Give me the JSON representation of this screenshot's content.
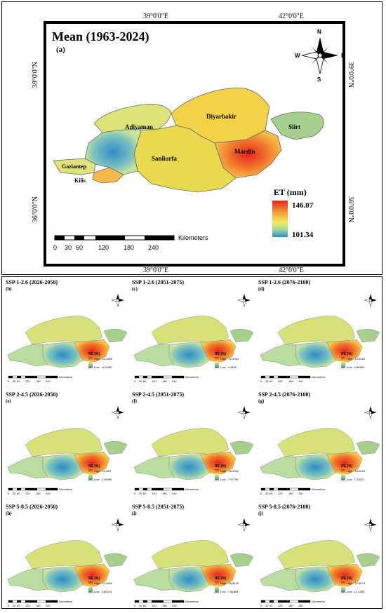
{
  "main": {
    "title": "Mean (1963-2024)",
    "subtitle": "(a)",
    "lon_labels": [
      "39°0'0\"E",
      "42°0'0\"E"
    ],
    "lat_labels": [
      "39°0'0\"N",
      "36°0'0\"N"
    ],
    "legend": {
      "title": "ET (mm)",
      "high": "146.07",
      "low": "101.34"
    },
    "scale": {
      "ticks": [
        "0",
        "30",
        "60",
        "120",
        "180",
        "240"
      ],
      "unit": "Kilometers"
    },
    "regions": [
      "Diyarbakir",
      "Siirt",
      "Adiyaman",
      "Mardin",
      "Sanliurfa",
      "Gaziantep",
      "Kilis"
    ],
    "compass": [
      "N",
      "S",
      "E",
      "W"
    ]
  },
  "panels": [
    {
      "title": "SSP 1-2.6 (2026-2050)",
      "label": "(b)",
      "legend_title": "RE (%)",
      "high": "High : 12.3169",
      "low": "Low : -6.51067"
    },
    {
      "title": "SSP 1-2.6 (2051-2075)",
      "label": "(c)",
      "legend_title": "RE (%)",
      "high": "High : 12.4912",
      "low": "Low : 4.4439"
    },
    {
      "title": "SSP 1-2.6 (2076-2100)",
      "label": "(d)",
      "legend_title": "RE (%)",
      "high": "High : 12.6320",
      "low": "Low : 4.86599"
    },
    {
      "title": "SSP 2-4.5 (2026-2050)",
      "label": "(e)",
      "legend_title": "RE (%)",
      "high": "High : 12.549",
      "low": "Low : 4.06999"
    },
    {
      "title": "SSP 2-4.5 (2051-2075)",
      "label": "(f)",
      "legend_title": "RE (%)",
      "high": "High : 16.2004",
      "low": "Low : 7.97799"
    },
    {
      "title": "SSP 2-4.5 (2076-2100)",
      "label": "(g)",
      "legend_title": "RE (%)",
      "high": "High : 16.5233",
      "low": "Low : 7.11027"
    },
    {
      "title": "SSP 5-8.5 (2026-2050)",
      "label": "(h)",
      "legend_title": "RE (%)",
      "high": "High : 12.5464",
      "low": "Low : 4.80424"
    },
    {
      "title": "SSP 5-8.5 (2051-2075)",
      "label": "(i)",
      "legend_title": "RE (%)",
      "high": "High : 16.8149",
      "low": "Low : 7.81863"
    },
    {
      "title": "SSP 5-8.5 (2076-2100)",
      "label": "(j)",
      "legend_title": "RE (%)",
      "high": "High : 22.5579",
      "low": "Low : 12.4255"
    }
  ],
  "panel_scale": {
    "ticks": [
      "0",
      "30",
      "60",
      "120",
      "180",
      "240"
    ],
    "unit": "Kilometers"
  },
  "colors": {
    "high": "#e8241c",
    "mid": "#f0e05a",
    "low": "#2f8cc4",
    "green": "#8fc28a"
  }
}
